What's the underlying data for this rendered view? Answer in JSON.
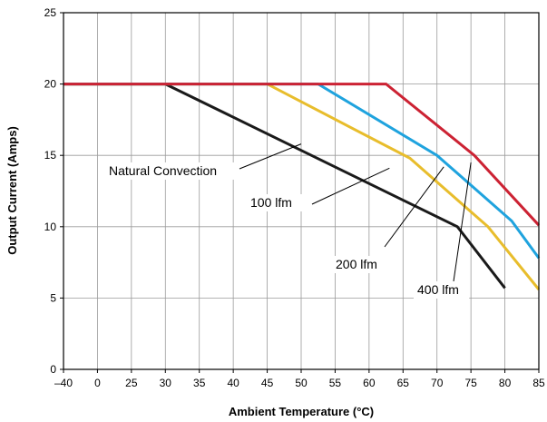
{
  "chart_data": {
    "type": "line",
    "xlabel": "Ambient Temperature (°C)",
    "ylabel": "Output Current (Amps)",
    "xlim": [
      -40,
      85
    ],
    "ylim": [
      0,
      25
    ],
    "x_ticks": [
      {
        "value": -40,
        "label": "–40"
      },
      {
        "value": 0,
        "label": "0"
      },
      {
        "value": 25,
        "label": "25"
      },
      {
        "value": 30,
        "label": "30"
      },
      {
        "value": 35,
        "label": "35"
      },
      {
        "value": 40,
        "label": "40"
      },
      {
        "value": 45,
        "label": "45"
      },
      {
        "value": 50,
        "label": "50"
      },
      {
        "value": 55,
        "label": "55"
      },
      {
        "value": 60,
        "label": "60"
      },
      {
        "value": 65,
        "label": "65"
      },
      {
        "value": 70,
        "label": "70"
      },
      {
        "value": 75,
        "label": "75"
      },
      {
        "value": 80,
        "label": "80"
      },
      {
        "value": 85,
        "label": "85"
      }
    ],
    "y_ticks": [
      {
        "value": 0,
        "label": "0"
      },
      {
        "value": 5,
        "label": "5"
      },
      {
        "value": 10,
        "label": "10"
      },
      {
        "value": 15,
        "label": "15"
      },
      {
        "value": 20,
        "label": "20"
      },
      {
        "value": 25,
        "label": "25"
      }
    ],
    "grid": true,
    "legend": "none",
    "series": [
      {
        "name": "Natural Convection",
        "color": "#1a1a1a",
        "points": [
          [
            -40,
            20
          ],
          [
            30,
            20
          ],
          [
            73,
            10
          ],
          [
            80,
            5.7
          ]
        ],
        "label_anchor": [
          50,
          15.8
        ]
      },
      {
        "name": "100 lfm",
        "color": "#e8bd2c",
        "points": [
          [
            -40,
            20
          ],
          [
            45,
            20
          ],
          [
            66,
            14.8
          ],
          [
            77.5,
            10
          ],
          [
            85,
            5.6
          ]
        ],
        "label_anchor": [
          63,
          14.1
        ]
      },
      {
        "name": "200 lfm",
        "color": "#1fa3de",
        "points": [
          [
            -40,
            20
          ],
          [
            52.5,
            20
          ],
          [
            70,
            15
          ],
          [
            81,
            10.4
          ],
          [
            85,
            7.8
          ]
        ],
        "label_anchor": [
          71,
          14.2
        ]
      },
      {
        "name": "400 lfm",
        "color": "#cc2233",
        "points": [
          [
            -40,
            20
          ],
          [
            62.5,
            20
          ],
          [
            75.5,
            15
          ],
          [
            85,
            10.1
          ]
        ],
        "label_anchor": [
          75,
          14.5
        ]
      }
    ]
  }
}
